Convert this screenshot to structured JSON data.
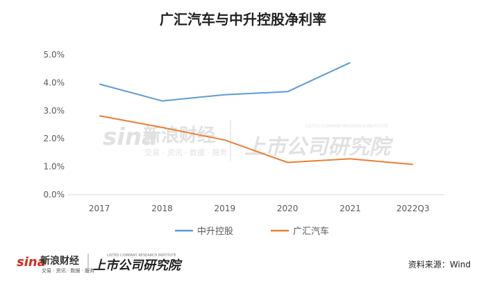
{
  "chart_data": {
    "type": "line",
    "title": "广汇汽车与中升控股净利率",
    "categories": [
      "2017",
      "2018",
      "2019",
      "2020",
      "2021",
      "2022Q3"
    ],
    "series": [
      {
        "name": "中升控股",
        "color": "#5b9bd5",
        "values": [
          3.95,
          3.35,
          3.57,
          3.68,
          4.72,
          null
        ]
      },
      {
        "name": "广汇汽车",
        "color": "#ed7d31",
        "values": [
          2.82,
          2.4,
          1.95,
          1.15,
          1.28,
          1.08
        ]
      }
    ],
    "yticks": [
      "0.0%",
      "1.0%",
      "2.0%",
      "3.0%",
      "4.0%",
      "5.0%"
    ],
    "ylim": [
      0,
      5
    ],
    "grid": false,
    "legend_position": "bottom"
  },
  "watermark": {
    "brand": "sina",
    "cn_name": "新浪财经",
    "tagline": "交易 · 资讯 · 数据 · 服务",
    "research": "上市公司研究院",
    "research_en": "LISTED COMPANY RESEARCH INSTITUTE"
  },
  "footer": {
    "source": "资料来源：Wind"
  }
}
